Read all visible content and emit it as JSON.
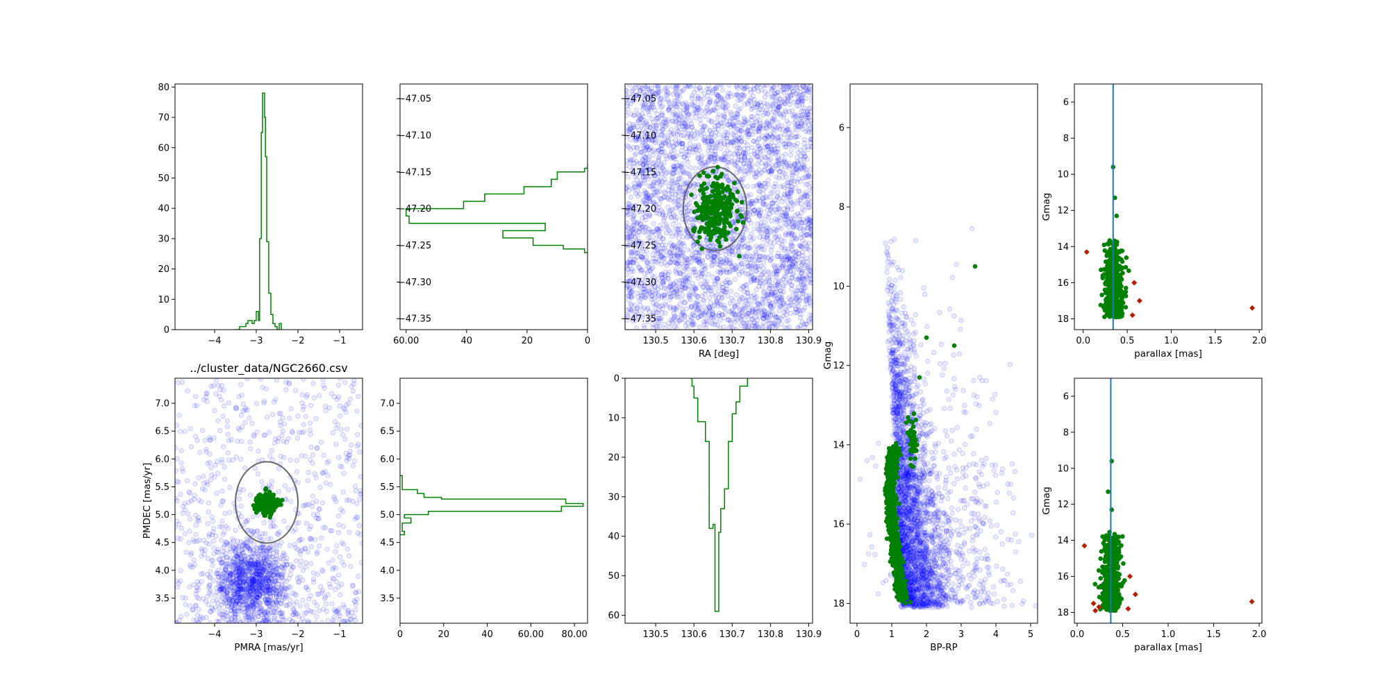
{
  "chart_data": [
    {
      "id": "pmra-hist",
      "type": "histogram",
      "xlim": [
        -4.95,
        -0.45
      ],
      "ylim": [
        0,
        81
      ],
      "xticks": [
        -4,
        -3,
        -2,
        -1
      ],
      "yticks": [
        0,
        10,
        20,
        30,
        40,
        50,
        60,
        70,
        80
      ],
      "xlabel": "",
      "ylabel": "",
      "title": "",
      "series": [
        {
          "color": "#008000",
          "bins": [
            [
              -3.5,
              0
            ],
            [
              -3.4,
              1
            ],
            [
              -3.3,
              1
            ],
            [
              -3.25,
              2
            ],
            [
              -3.2,
              3
            ],
            [
              -3.1,
              2
            ],
            [
              -3.05,
              3
            ],
            [
              -3.0,
              6
            ],
            [
              -2.95,
              3
            ],
            [
              -2.92,
              30
            ],
            [
              -2.88,
              65
            ],
            [
              -2.85,
              78
            ],
            [
              -2.8,
              70
            ],
            [
              -2.78,
              57
            ],
            [
              -2.75,
              29
            ],
            [
              -2.7,
              12
            ],
            [
              -2.65,
              5
            ],
            [
              -2.6,
              2
            ],
            [
              -2.55,
              1
            ],
            [
              -2.5,
              0
            ],
            [
              -2.45,
              2
            ],
            [
              -2.4,
              0
            ]
          ]
        }
      ]
    },
    {
      "id": "dec-hist",
      "type": "histogram-horizontal",
      "xlim": [
        62,
        0
      ],
      "ylim": [
        -47.365,
        -47.03
      ],
      "xticks": [
        60,
        40,
        20,
        0
      ],
      "yticks": [
        -47.05,
        -47.1,
        -47.15,
        -47.2,
        -47.25,
        -47.3,
        -47.35
      ],
      "xlabel": "",
      "ylabel": "",
      "title": "",
      "series": [
        {
          "color": "#008000",
          "bins": [
            [
              -47.14,
              0
            ],
            [
              -47.145,
              1
            ],
            [
              -47.15,
              10
            ],
            [
              -47.16,
              12
            ],
            [
              -47.17,
              21
            ],
            [
              -47.18,
              34
            ],
            [
              -47.19,
              41
            ],
            [
              -47.2,
              60
            ],
            [
              -47.21,
              59
            ],
            [
              -47.22,
              14
            ],
            [
              -47.23,
              28
            ],
            [
              -47.24,
              18
            ],
            [
              -47.25,
              8
            ],
            [
              -47.255,
              1
            ],
            [
              -47.26,
              0
            ]
          ]
        }
      ]
    },
    {
      "id": "sky",
      "type": "scatter",
      "xlim": [
        130.42,
        130.91
      ],
      "ylim": [
        -47.365,
        -47.03
      ],
      "xticks": [
        130.5,
        130.6,
        130.7,
        130.8,
        130.9
      ],
      "yticks": [
        -47.05,
        -47.1,
        -47.15,
        -47.2,
        -47.25,
        -47.3,
        -47.35
      ],
      "xlabel": "RA [deg]",
      "ylabel": "",
      "title": "",
      "field": {
        "color": "#0000ff",
        "count": 3500,
        "style": "uniform"
      },
      "members": {
        "color": "#008000",
        "count": 280,
        "center": [
          130.66,
          -47.2
        ],
        "spread": [
          0.03,
          0.022
        ]
      },
      "ellipse": {
        "center": [
          130.655,
          -47.2
        ],
        "half_width": 0.083,
        "half_height": 0.057,
        "color": "#666666"
      }
    },
    {
      "id": "cmd",
      "type": "scatter",
      "xlim": [
        -0.2,
        5.2
      ],
      "ylim": [
        18.5,
        4.9
      ],
      "xticks": [
        0,
        1,
        2,
        3,
        4,
        5
      ],
      "yticks": [
        6,
        8,
        10,
        12,
        14,
        16,
        18
      ],
      "xlabel": "BP-RP",
      "ylabel": "Gmag",
      "title": "",
      "field": {
        "color": "#0000ff",
        "count": 3000,
        "style": "cmd"
      },
      "members": {
        "color": "#008000",
        "sequence": [
          [
            1.05,
            14.1
          ],
          [
            0.95,
            15.0
          ],
          [
            1.0,
            16.0
          ],
          [
            1.15,
            17.0
          ],
          [
            1.3,
            17.9
          ]
        ],
        "clump": [
          1.6,
          13.9
        ],
        "extra": [
          [
            3.4,
            9.5
          ],
          [
            2.0,
            11.3
          ],
          [
            2.8,
            11.5
          ],
          [
            1.8,
            12.3
          ],
          [
            1.5,
            13.4
          ]
        ]
      }
    },
    {
      "id": "parallax-top",
      "type": "scatter",
      "xlim": [
        -0.1,
        2.03
      ],
      "ylim": [
        18.6,
        5.0
      ],
      "xticks": [
        0.0,
        0.5,
        1.0,
        1.5,
        2.0
      ],
      "xtick_labels": [
        "0.0",
        "0.5",
        "1.0",
        "1.5",
        "2.0"
      ],
      "yticks": [
        6,
        8,
        10,
        12,
        14,
        16,
        18
      ],
      "xlabel": "parallax [mas]",
      "ylabel": "Gmag",
      "title": "",
      "vline": {
        "x": 0.34,
        "color": "#1f77b4"
      },
      "members": {
        "color": "#008000",
        "center_x": 0.34,
        "spread": 0.05,
        "gmin": 13.5,
        "gmax": 17.9,
        "extra": [
          [
            0.34,
            9.6
          ],
          [
            0.36,
            11.3
          ],
          [
            0.38,
            12.3
          ]
        ]
      },
      "outliers": {
        "color": "#b22000",
        "points": [
          [
            0.04,
            14.3
          ],
          [
            0.58,
            16.0
          ],
          [
            0.64,
            17.0
          ],
          [
            0.56,
            17.8
          ],
          [
            1.92,
            17.4
          ]
        ]
      }
    },
    {
      "id": "pm-scatter",
      "type": "scatter",
      "xlim": [
        -4.95,
        -0.45
      ],
      "ylim": [
        3.05,
        7.45
      ],
      "xticks": [
        -4,
        -3,
        -2,
        -1
      ],
      "yticks": [
        3.5,
        4.0,
        4.5,
        5.0,
        5.5,
        6.0,
        6.5,
        7.0
      ],
      "xtick_labels": [
        "−4",
        "−3",
        "−2",
        "−1"
      ],
      "ytick_labels": [
        "3.5",
        "4.0",
        "4.5",
        "5.0",
        "5.5",
        "6.0",
        "6.5",
        "7.0"
      ],
      "xlabel": "PMRA [mas/yr]",
      "ylabel": "PMDEC [mas/yr]",
      "title": "../cluster_data/NGC2660.csv",
      "field": {
        "color": "#0000ff",
        "count": 1800,
        "style": "pm",
        "core": [
          -3.1,
          3.8
        ]
      },
      "members": {
        "color": "#008000",
        "count": 240,
        "center": [
          -2.75,
          5.2
        ],
        "spread": [
          0.12,
          0.1
        ]
      },
      "ellipse": {
        "center": [
          -2.75,
          5.22
        ],
        "half_width": 0.75,
        "half_height": 0.73,
        "color": "#666666"
      }
    },
    {
      "id": "pmdec-hist",
      "type": "histogram-horizontal",
      "xlim": [
        0,
        86
      ],
      "ylim": [
        3.05,
        7.45
      ],
      "xticks": [
        0,
        20,
        40,
        60,
        80
      ],
      "yticks": [
        3.5,
        4.0,
        4.5,
        5.0,
        5.5,
        6.0,
        6.5,
        7.0
      ],
      "ytick_labels": [
        "3.5",
        "4.0",
        "4.5",
        "5.0",
        "5.5",
        "6.0",
        "6.5",
        "7.0"
      ],
      "xlabel": "",
      "ylabel": "",
      "title": "",
      "series": [
        {
          "color": "#008000",
          "bins": [
            [
              5.72,
              0
            ],
            [
              5.7,
              1
            ],
            [
              5.6,
              1
            ],
            [
              5.48,
              1
            ],
            [
              5.45,
              8
            ],
            [
              5.38,
              11
            ],
            [
              5.31,
              19
            ],
            [
              5.28,
              76
            ],
            [
              5.2,
              84
            ],
            [
              5.15,
              74
            ],
            [
              5.06,
              13
            ],
            [
              5.0,
              2
            ],
            [
              4.94,
              5
            ],
            [
              4.85,
              1
            ],
            [
              4.7,
              2
            ],
            [
              4.64,
              0
            ]
          ]
        }
      ]
    },
    {
      "id": "ra-hist",
      "type": "histogram",
      "xlim": [
        130.42,
        130.91
      ],
      "ylim": [
        62,
        0
      ],
      "xticks": [
        130.5,
        130.6,
        130.7,
        130.8,
        130.9
      ],
      "yticks": [
        0,
        10,
        20,
        30,
        40,
        50,
        60
      ],
      "xlabel": "",
      "ylabel": "",
      "title": "",
      "series": [
        {
          "color": "#008000",
          "bins": [
            [
              130.59,
              0
            ],
            [
              130.595,
              2
            ],
            [
              130.6,
              5
            ],
            [
              130.61,
              11
            ],
            [
              130.63,
              16
            ],
            [
              130.64,
              38
            ],
            [
              130.65,
              37
            ],
            [
              130.655,
              59
            ],
            [
              130.665,
              39
            ],
            [
              130.67,
              33
            ],
            [
              130.68,
              28
            ],
            [
              130.69,
              16
            ],
            [
              130.7,
              9
            ],
            [
              130.71,
              6
            ],
            [
              130.72,
              2
            ],
            [
              130.74,
              0
            ]
          ]
        }
      ]
    },
    {
      "id": "parallax-bottom",
      "type": "scatter",
      "xlim": [
        -0.03,
        2.03
      ],
      "ylim": [
        18.6,
        5.0
      ],
      "xticks": [
        0.0,
        0.5,
        1.0,
        1.5,
        2.0
      ],
      "xtick_labels": [
        "0.0",
        "0.5",
        "1.0",
        "1.5",
        "2.0"
      ],
      "yticks": [
        6,
        8,
        10,
        12,
        14,
        16,
        18
      ],
      "xlabel": "parallax [mas]",
      "ylabel": "Gmag",
      "title": "",
      "vline": {
        "x": 0.37,
        "color": "#1f77b4"
      },
      "members": {
        "color": "#008000",
        "center_x": 0.37,
        "spread": 0.05,
        "gmin": 13.5,
        "gmax": 17.9,
        "extra": [
          [
            0.38,
            9.6
          ],
          [
            0.34,
            11.3
          ],
          [
            0.38,
            12.3
          ]
        ]
      },
      "outliers": {
        "color": "#b22000",
        "points": [
          [
            0.08,
            14.3
          ],
          [
            0.58,
            16.0
          ],
          [
            0.64,
            17.0
          ],
          [
            0.56,
            17.8
          ],
          [
            1.92,
            17.4
          ],
          [
            0.18,
            17.5
          ],
          [
            0.2,
            17.9
          ],
          [
            0.24,
            17.7
          ]
        ]
      }
    }
  ]
}
